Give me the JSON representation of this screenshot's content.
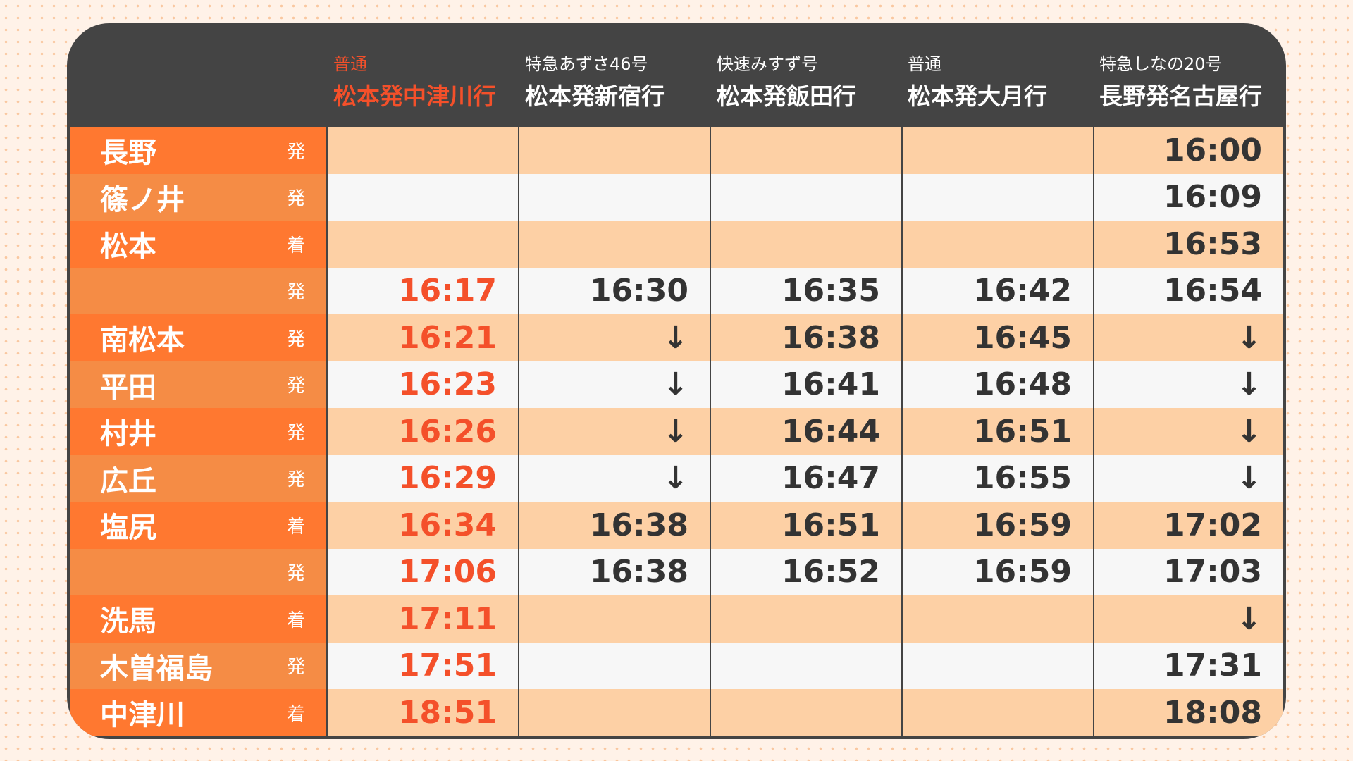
{
  "colors": {
    "accent": "#f4502a",
    "station_bg": "#ff7830",
    "row_peach": "#fdd0a5",
    "header_bg": "#444444"
  },
  "trains": [
    {
      "type": "普通",
      "route": "松本発中津川行",
      "highlight": true
    },
    {
      "type": "特急あずさ46号",
      "route": "松本発新宿行"
    },
    {
      "type": "快速みすず号",
      "route": "松本発飯田行"
    },
    {
      "type": "普通",
      "route": "松本発大月行"
    },
    {
      "type": "特急しなの20号",
      "route": "長野発名古屋行"
    }
  ],
  "rows": [
    {
      "station": "長野",
      "kind": "発",
      "times": [
        "",
        "",
        "",
        "",
        "16:00"
      ]
    },
    {
      "station": "篠ノ井",
      "kind": "発",
      "times": [
        "",
        "",
        "",
        "",
        "16:09"
      ]
    },
    {
      "station": "松本",
      "kind": "着",
      "times": [
        "",
        "",
        "",
        "",
        "16:53"
      ]
    },
    {
      "station": "",
      "kind": "発",
      "times": [
        "16:17",
        "16:30",
        "16:35",
        "16:42",
        "16:54"
      ]
    },
    {
      "station": "南松本",
      "kind": "発",
      "times": [
        "16:21",
        "↓",
        "16:38",
        "16:45",
        "↓"
      ]
    },
    {
      "station": "平田",
      "kind": "発",
      "times": [
        "16:23",
        "↓",
        "16:41",
        "16:48",
        "↓"
      ]
    },
    {
      "station": "村井",
      "kind": "発",
      "times": [
        "16:26",
        "↓",
        "16:44",
        "16:51",
        "↓"
      ]
    },
    {
      "station": "広丘",
      "kind": "発",
      "times": [
        "16:29",
        "↓",
        "16:47",
        "16:55",
        "↓"
      ]
    },
    {
      "station": "塩尻",
      "kind": "着",
      "times": [
        "16:34",
        "16:38",
        "16:51",
        "16:59",
        "17:02"
      ]
    },
    {
      "station": "",
      "kind": "発",
      "times": [
        "17:06",
        "16:38",
        "16:52",
        "16:59",
        "17:03"
      ]
    },
    {
      "station": "洗馬",
      "kind": "着",
      "times": [
        "17:11",
        "",
        "",
        "",
        "↓"
      ]
    },
    {
      "station": "木曽福島",
      "kind": "発",
      "times": [
        "17:51",
        "",
        "",
        "",
        "17:31"
      ]
    },
    {
      "station": "中津川",
      "kind": "着",
      "times": [
        "18:51",
        "",
        "",
        "",
        "18:08"
      ]
    }
  ]
}
